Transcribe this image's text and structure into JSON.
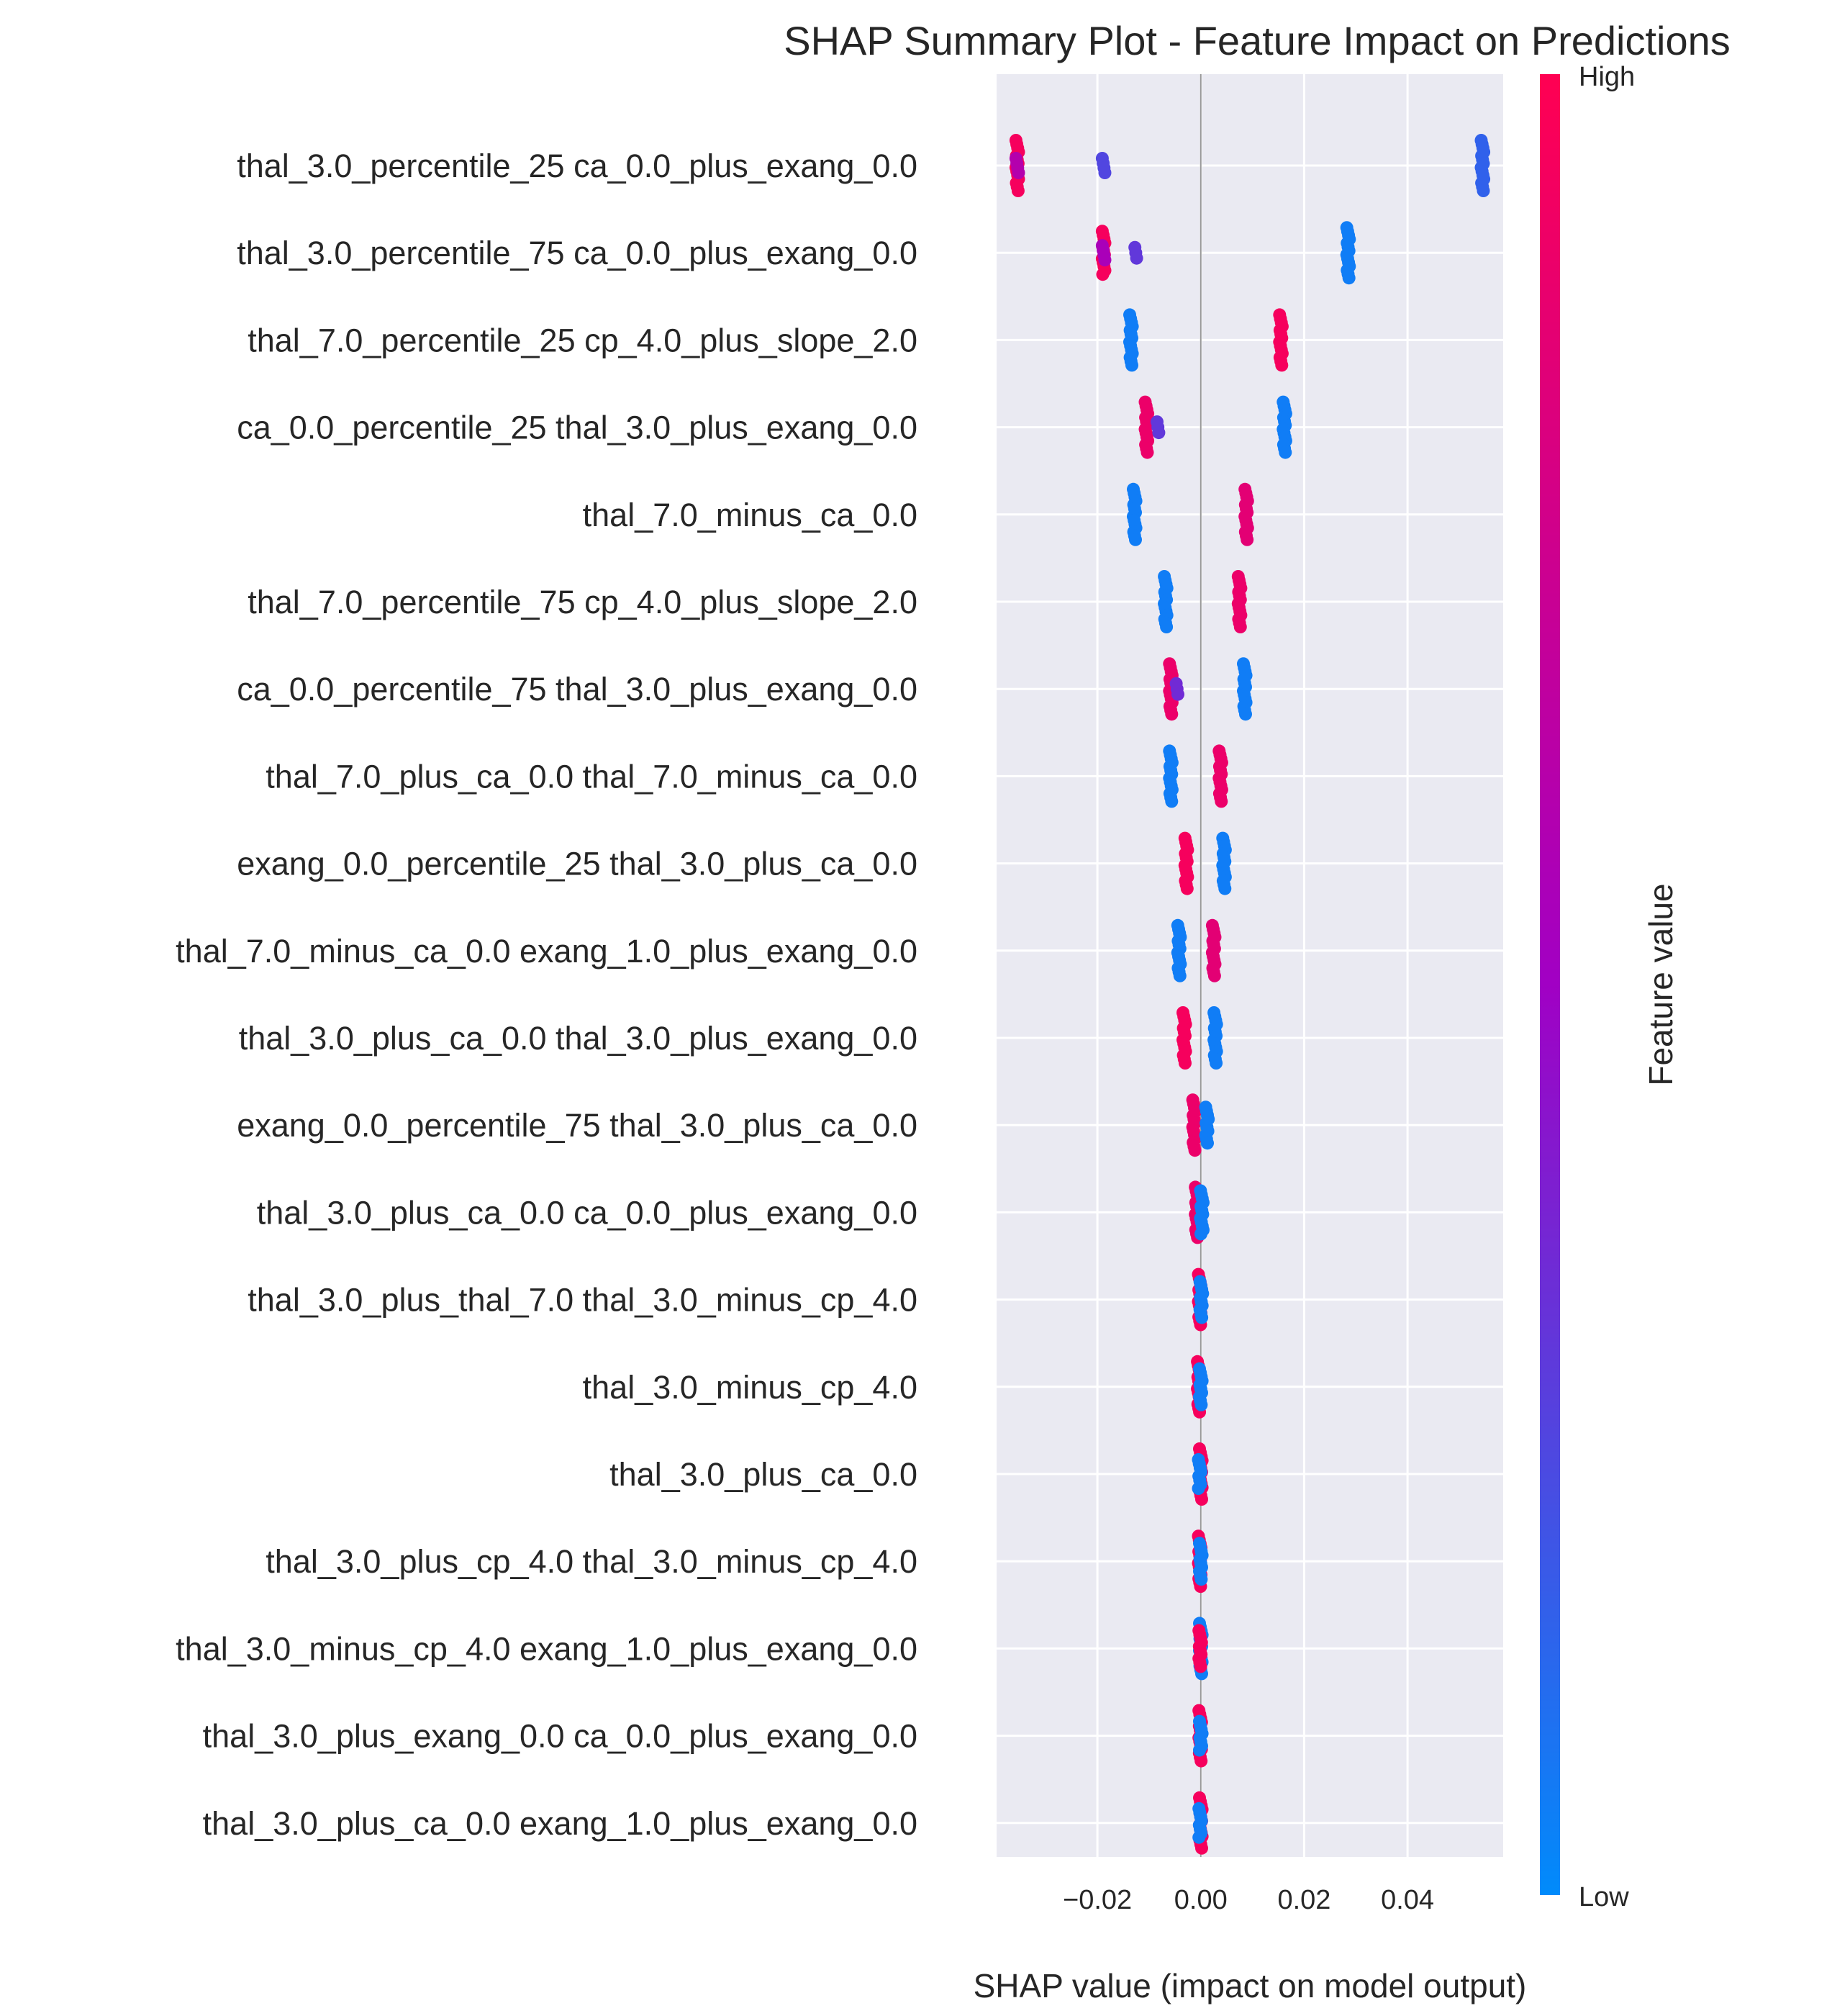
{
  "chart_data": {
    "type": "scatter",
    "subtype": "shap-beeswarm",
    "title": "SHAP Summary Plot - Feature Impact on Predictions",
    "xlabel": "SHAP value (impact on model output)",
    "xlim": [
      -0.0395,
      0.0585
    ],
    "xticks": [
      -0.02,
      0.0,
      0.02,
      0.04
    ],
    "xtick_labels": [
      "−0.02",
      "0.00",
      "0.02",
      "0.04"
    ],
    "zero_line": 0.0,
    "grid": true,
    "colorbar": {
      "label": "Feature value",
      "high_label": "High",
      "low_label": "Low",
      "low_color": "#008bfb",
      "mid_color": "#a100c4",
      "high_color": "#ff0052"
    },
    "features": [
      {
        "name": "thal_3.0_percentile_25 ca_0.0_plus_exang_0.0",
        "clusters": [
          {
            "x": -0.0355,
            "n": 14,
            "c": 0.95
          },
          {
            "x": -0.0355,
            "n": 4,
            "c": 0.6
          },
          {
            "x": -0.0188,
            "n": 4,
            "c": 0.25
          },
          {
            "x": 0.0545,
            "n": 14,
            "c": 0.15
          }
        ]
      },
      {
        "name": "thal_3.0_percentile_75 ca_0.0_plus_exang_0.0",
        "clusters": [
          {
            "x": -0.0188,
            "n": 12,
            "c": 0.95
          },
          {
            "x": -0.0188,
            "n": 4,
            "c": 0.55
          },
          {
            "x": -0.0125,
            "n": 3,
            "c": 0.3
          },
          {
            "x": 0.0285,
            "n": 14,
            "c": 0.05
          }
        ]
      },
      {
        "name": "thal_7.0_percentile_25 cp_4.0_plus_slope_2.0",
        "clusters": [
          {
            "x": -0.0135,
            "n": 14,
            "c": 0.05
          },
          {
            "x": 0.0155,
            "n": 14,
            "c": 0.95
          }
        ]
      },
      {
        "name": "ca_0.0_percentile_25 thal_3.0_plus_exang_0.0",
        "clusters": [
          {
            "x": -0.0105,
            "n": 14,
            "c": 0.9
          },
          {
            "x": -0.0082,
            "n": 3,
            "c": 0.3
          },
          {
            "x": 0.0162,
            "n": 14,
            "c": 0.05
          }
        ]
      },
      {
        "name": "thal_7.0_minus_ca_0.0",
        "clusters": [
          {
            "x": -0.0128,
            "n": 14,
            "c": 0.05
          },
          {
            "x": 0.0088,
            "n": 14,
            "c": 0.85
          }
        ]
      },
      {
        "name": "thal_7.0_percentile_75 cp_4.0_plus_slope_2.0",
        "clusters": [
          {
            "x": -0.0068,
            "n": 14,
            "c": 0.05
          },
          {
            "x": 0.0075,
            "n": 14,
            "c": 0.9
          }
        ]
      },
      {
        "name": "ca_0.0_percentile_75 thal_3.0_plus_exang_0.0",
        "clusters": [
          {
            "x": -0.0058,
            "n": 14,
            "c": 0.9
          },
          {
            "x": -0.0045,
            "n": 3,
            "c": 0.35
          },
          {
            "x": 0.0085,
            "n": 14,
            "c": 0.05
          }
        ]
      },
      {
        "name": "thal_7.0_plus_ca_0.0 thal_7.0_minus_ca_0.0",
        "clusters": [
          {
            "x": -0.0058,
            "n": 14,
            "c": 0.05
          },
          {
            "x": 0.0038,
            "n": 14,
            "c": 0.9
          }
        ]
      },
      {
        "name": "exang_0.0_percentile_25 thal_3.0_plus_ca_0.0",
        "clusters": [
          {
            "x": -0.0028,
            "n": 14,
            "c": 0.95
          },
          {
            "x": 0.0045,
            "n": 14,
            "c": 0.05
          }
        ]
      },
      {
        "name": "thal_7.0_minus_ca_0.0 exang_1.0_plus_exang_0.0",
        "clusters": [
          {
            "x": -0.0042,
            "n": 14,
            "c": 0.05
          },
          {
            "x": 0.0025,
            "n": 14,
            "c": 0.85
          }
        ]
      },
      {
        "name": "thal_3.0_plus_ca_0.0 thal_3.0_plus_exang_0.0",
        "clusters": [
          {
            "x": -0.0032,
            "n": 14,
            "c": 0.95
          },
          {
            "x": 0.0028,
            "n": 14,
            "c": 0.05
          }
        ]
      },
      {
        "name": "exang_0.0_percentile_75 thal_3.0_plus_ca_0.0",
        "clusters": [
          {
            "x": -0.0013,
            "n": 14,
            "c": 0.9
          },
          {
            "x": 0.0012,
            "n": 10,
            "c": 0.05
          }
        ]
      },
      {
        "name": "thal_3.0_plus_ca_0.0 ca_0.0_plus_exang_0.0",
        "clusters": [
          {
            "x": -0.0008,
            "n": 14,
            "c": 0.9
          },
          {
            "x": 0.0002,
            "n": 12,
            "c": 0.05
          }
        ]
      },
      {
        "name": "thal_3.0_plus_thal_7.0 thal_3.0_minus_cp_4.0",
        "clusters": [
          {
            "x": -0.0002,
            "n": 14,
            "c": 0.95
          },
          {
            "x": 0.0001,
            "n": 10,
            "c": 0.05
          }
        ]
      },
      {
        "name": "thal_3.0_minus_cp_4.0",
        "clusters": [
          {
            "x": -0.0004,
            "n": 14,
            "c": 0.95
          },
          {
            "x": 0.0,
            "n": 10,
            "c": 0.05
          }
        ]
      },
      {
        "name": "thal_3.0_plus_ca_0.0",
        "clusters": [
          {
            "x": 0.0,
            "n": 14,
            "c": 0.95
          },
          {
            "x": -0.0002,
            "n": 8,
            "c": 0.05
          }
        ]
      },
      {
        "name": "thal_3.0_plus_cp_4.0 thal_3.0_minus_cp_4.0",
        "clusters": [
          {
            "x": -0.0002,
            "n": 14,
            "c": 0.95
          },
          {
            "x": 0.0,
            "n": 10,
            "c": 0.05
          }
        ]
      },
      {
        "name": "thal_3.0_minus_cp_4.0 exang_1.0_plus_exang_0.0",
        "clusters": [
          {
            "x": 0.0,
            "n": 14,
            "c": 0.05
          },
          {
            "x": -0.0001,
            "n": 10,
            "c": 0.95
          }
        ]
      },
      {
        "name": "thal_3.0_plus_exang_0.0 ca_0.0_plus_exang_0.0",
        "clusters": [
          {
            "x": -0.0001,
            "n": 14,
            "c": 0.95
          },
          {
            "x": 0.0,
            "n": 8,
            "c": 0.05
          }
        ]
      },
      {
        "name": "thal_3.0_plus_ca_0.0 exang_1.0_plus_exang_0.0",
        "clusters": [
          {
            "x": 0.0,
            "n": 14,
            "c": 0.95
          },
          {
            "x": -0.0001,
            "n": 8,
            "c": 0.05
          }
        ]
      }
    ]
  }
}
